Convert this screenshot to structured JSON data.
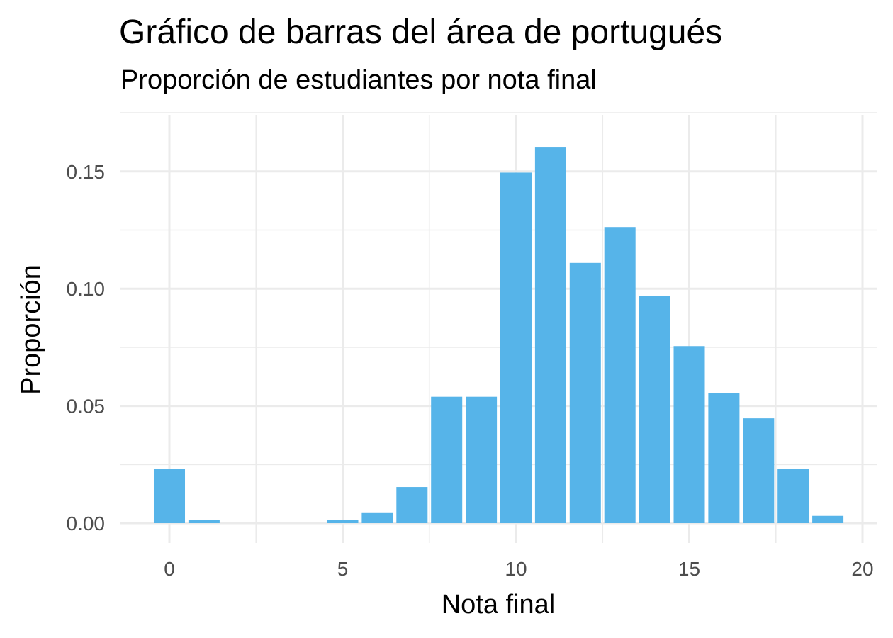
{
  "chart_data": {
    "type": "bar",
    "title": "Gráfico de barras del área de portugués",
    "subtitle": "Proporción de estudiantes por nota final",
    "xlabel": "Nota final",
    "ylabel": "Proporción",
    "x": [
      0,
      1,
      2,
      3,
      4,
      5,
      6,
      7,
      8,
      9,
      10,
      11,
      12,
      13,
      14,
      15,
      16,
      17,
      18,
      19
    ],
    "values": [
      0.0231,
      0.0015,
      0,
      0,
      0,
      0.0015,
      0.0046,
      0.0154,
      0.0539,
      0.0539,
      0.1495,
      0.1602,
      0.111,
      0.1263,
      0.097,
      0.0755,
      0.0555,
      0.0447,
      0.0231,
      0.0031
    ],
    "xlim": [
      -0.5,
      19.5
    ],
    "ylim": [
      0,
      0.17
    ],
    "x_ticks": [
      0,
      5,
      10,
      15,
      20
    ],
    "x_tick_labels": [
      "0",
      "5",
      "10",
      "15",
      "20"
    ],
    "y_ticks": [
      0,
      0.05,
      0.1,
      0.15
    ],
    "y_tick_labels": [
      "0.00",
      "0.05",
      "0.10",
      "0.15"
    ],
    "bar_color": "#56B4E9",
    "grid": true,
    "legend": "none"
  }
}
